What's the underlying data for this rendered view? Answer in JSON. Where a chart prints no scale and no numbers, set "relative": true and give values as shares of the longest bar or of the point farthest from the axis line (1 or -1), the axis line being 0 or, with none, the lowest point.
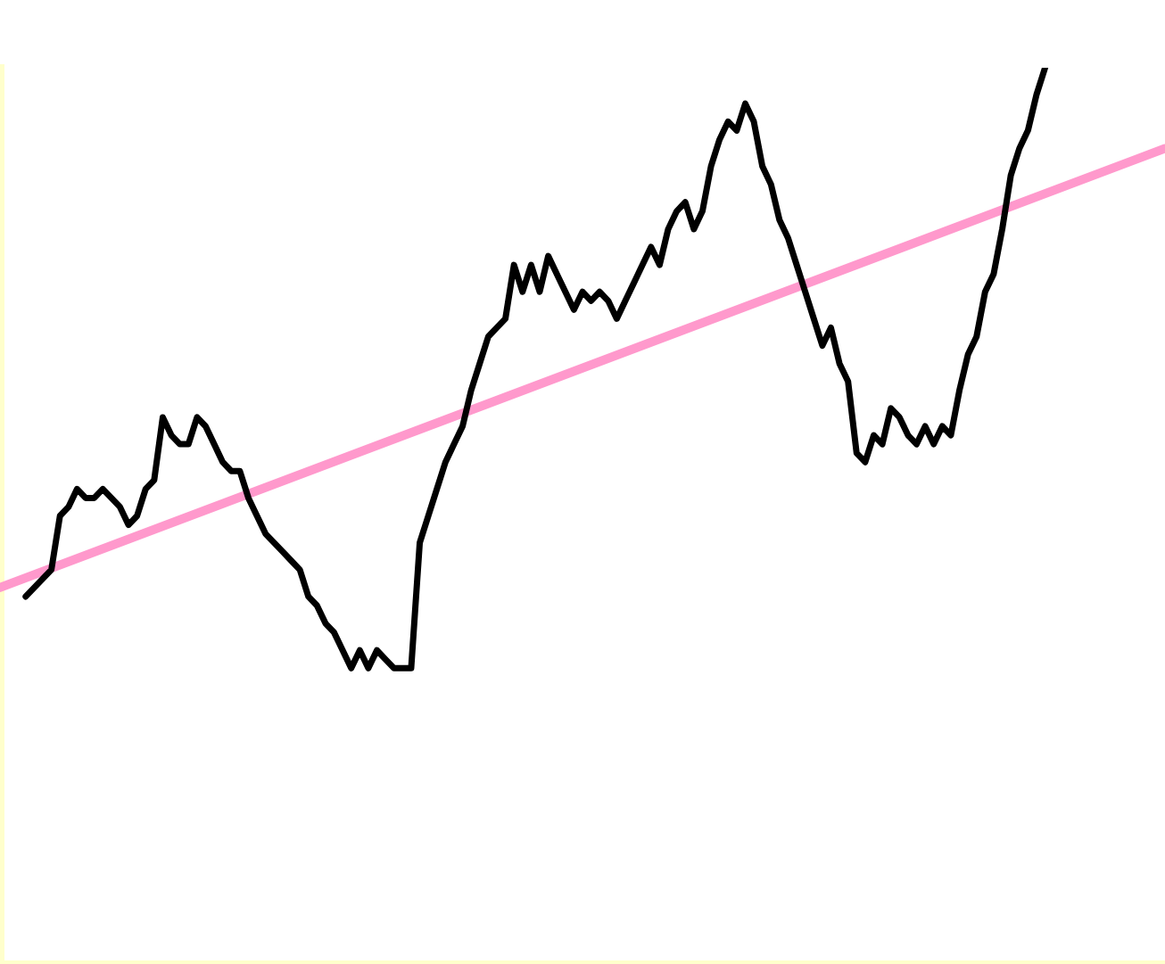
{
  "chart_data": {
    "type": "line",
    "relative": true,
    "categories": [
      null,
      null,
      null,
      null,
      null,
      null,
      null,
      null,
      null,
      null,
      null,
      null,
      null,
      null,
      null,
      null,
      null,
      null,
      null,
      null,
      null,
      null,
      null,
      null,
      null,
      null,
      null,
      null,
      null,
      null,
      null,
      null,
      null,
      null,
      null,
      null,
      null,
      null,
      null,
      null,
      null,
      null,
      null,
      null,
      null,
      null,
      null,
      null,
      null,
      null,
      null,
      null,
      null,
      null,
      null,
      null,
      null,
      null,
      null,
      null,
      null,
      null,
      null,
      null,
      null,
      null,
      null,
      null,
      null,
      null,
      null,
      null,
      null,
      null,
      null,
      null,
      null,
      null,
      null,
      null,
      null,
      null,
      null,
      null,
      null,
      null,
      null,
      null,
      null,
      null,
      null,
      null,
      null,
      null,
      null,
      null,
      null,
      null,
      null,
      null,
      null,
      null,
      null,
      null,
      null,
      null,
      null,
      null,
      null,
      null,
      null,
      null,
      null,
      null,
      null,
      null,
      null,
      null,
      null,
      null,
      null,
      null,
      null,
      null,
      null,
      null,
      null,
      null,
      null,
      null,
      null,
      null,
      null,
      null,
      null,
      null,
      null
    ],
    "series": [
      {
        "color": "#000000",
        "values": [
          null,
          null,
          null,
          0.41,
          0.42,
          0.43,
          0.44,
          0.5,
          0.51,
          0.53,
          0.52,
          0.52,
          0.53,
          0.52,
          0.51,
          0.49,
          0.5,
          0.53,
          0.54,
          0.61,
          0.59,
          0.58,
          0.58,
          0.61,
          0.6,
          0.58,
          0.56,
          0.55,
          0.55,
          0.52,
          0.5,
          0.48,
          0.47,
          0.46,
          0.45,
          0.44,
          0.41,
          0.4,
          0.38,
          0.37,
          0.35,
          0.33,
          0.35,
          0.33,
          0.35,
          0.34,
          0.33,
          0.33,
          0.33,
          0.47,
          0.5,
          0.53,
          0.56,
          0.58,
          0.6,
          0.64,
          0.67,
          0.7,
          0.71,
          0.72,
          0.78,
          0.75,
          0.78,
          0.75,
          0.79,
          0.77,
          0.75,
          0.73,
          0.75,
          0.74,
          0.75,
          0.74,
          0.72,
          0.74,
          0.76,
          0.78,
          0.8,
          0.78,
          0.82,
          0.84,
          0.85,
          0.82,
          0.84,
          0.89,
          0.92,
          0.94,
          0.93,
          0.96,
          0.94,
          0.89,
          0.87,
          0.83,
          0.81,
          0.78,
          0.75,
          0.72,
          0.69,
          0.71,
          0.67,
          0.65,
          0.57,
          0.56,
          0.59,
          0.58,
          0.62,
          0.61,
          0.59,
          0.58,
          0.6,
          0.58,
          0.6,
          0.59,
          0.64,
          0.68,
          0.7,
          0.75,
          0.77,
          0.82,
          0.88,
          0.91,
          0.93,
          0.97,
          1,
          null,
          null,
          null,
          null,
          null,
          null,
          null,
          null,
          null,
          null,
          null,
          null,
          null,
          null
        ]
      },
      {
        "color": "#ff99cc",
        "values": [
          0.42,
          null,
          null,
          null,
          null,
          null,
          null,
          null,
          null,
          null,
          null,
          null,
          null,
          null,
          null,
          null,
          null,
          null,
          null,
          null,
          null,
          null,
          null,
          null,
          null,
          null,
          null,
          null,
          null,
          null,
          null,
          null,
          null,
          null,
          null,
          null,
          null,
          null,
          null,
          null,
          null,
          null,
          null,
          null,
          null,
          null,
          null,
          null,
          null,
          null,
          null,
          null,
          null,
          null,
          null,
          null,
          null,
          null,
          null,
          null,
          null,
          null,
          null,
          null,
          null,
          null,
          null,
          null,
          null,
          null,
          null,
          null,
          null,
          null,
          null,
          null,
          null,
          null,
          null,
          null,
          null,
          null,
          null,
          null,
          null,
          null,
          null,
          null,
          null,
          null,
          null,
          null,
          null,
          null,
          null,
          null,
          null,
          null,
          null,
          null,
          null,
          null,
          null,
          null,
          null,
          null,
          null,
          null,
          null,
          null,
          null,
          null,
          null,
          null,
          null,
          null,
          null,
          null,
          null,
          null,
          null,
          null,
          null,
          null,
          null,
          null,
          null,
          null,
          null,
          null,
          null,
          null,
          null,
          null,
          null,
          null,
          0.91
        ]
      }
    ]
  }
}
